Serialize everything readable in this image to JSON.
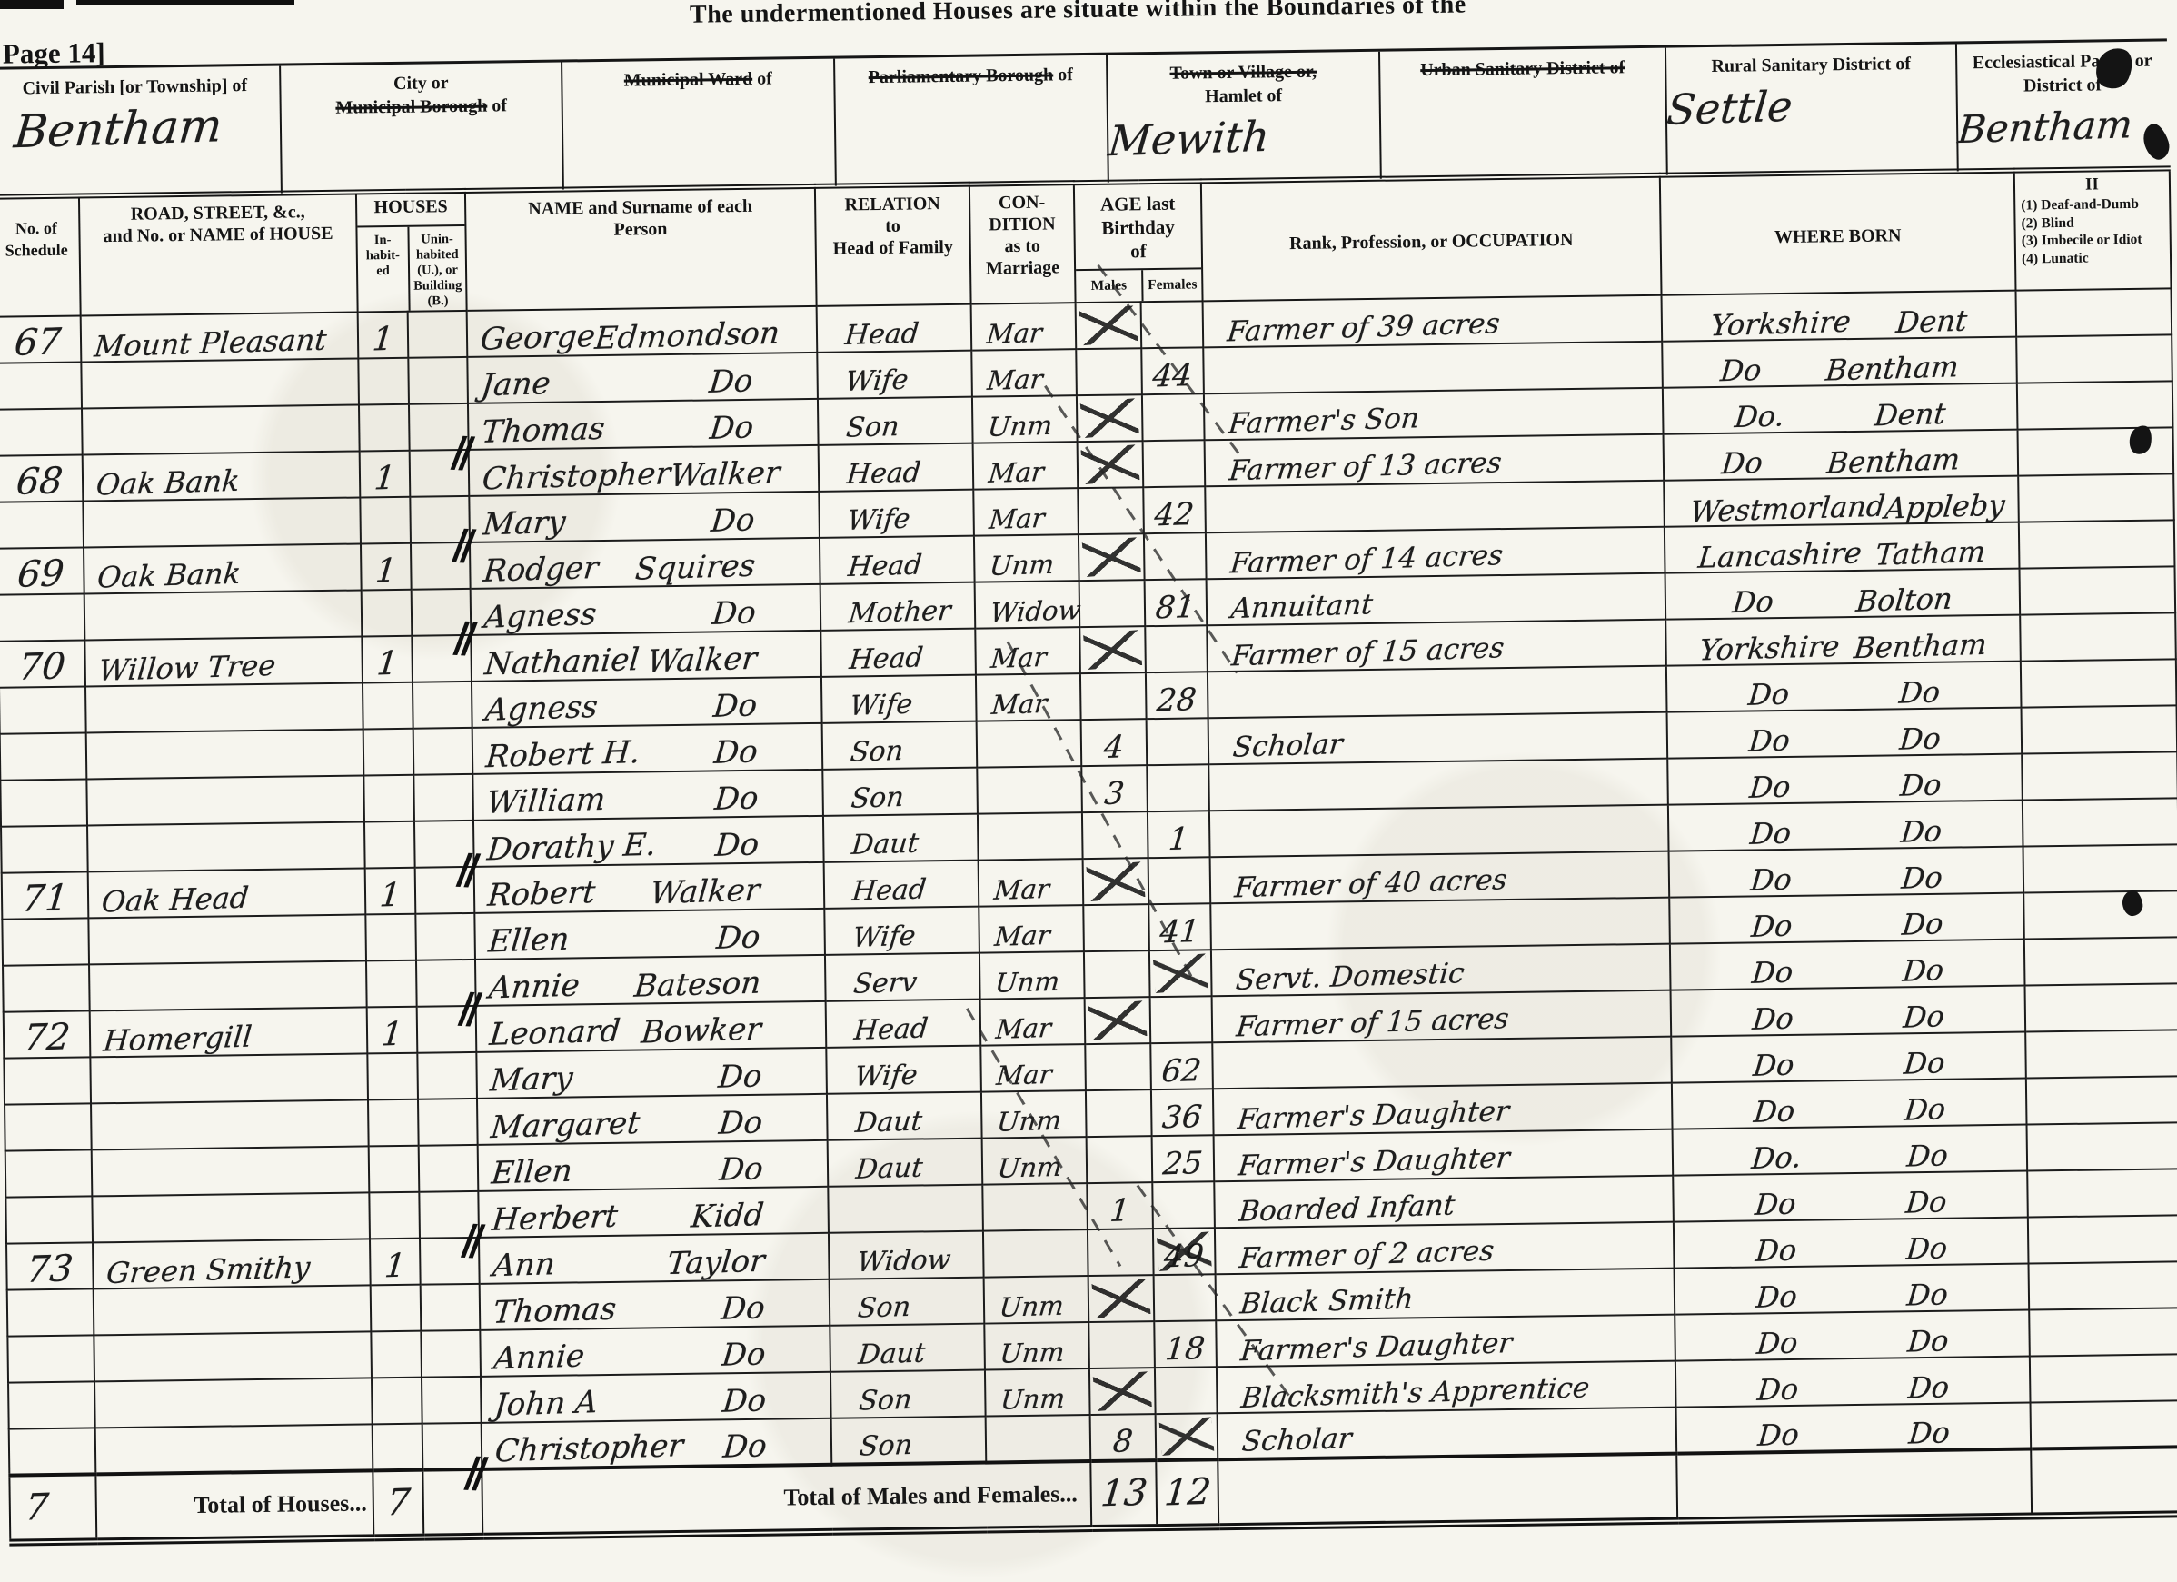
{
  "page": {
    "top_title": "The undermentioned Houses are situate within the Boundaries of the",
    "page_label": "Page 14]"
  },
  "marks": {
    "household": "∕∕"
  },
  "header_fields": [
    {
      "id": "civil-parish",
      "lines": [
        [
          {
            "t": "Civil Parish [or Township] of",
            "s": false
          }
        ]
      ],
      "value": "Bentham"
    },
    {
      "id": "municipal-borough",
      "lines": [
        [
          {
            "t": "City or",
            "s": false
          }
        ],
        [
          {
            "t": "Municipal Borough",
            "s": true
          },
          {
            "t": " of",
            "s": false
          }
        ]
      ],
      "value": ""
    },
    {
      "id": "municipal-ward",
      "lines": [
        [
          {
            "t": "Municipal Ward",
            "s": true
          },
          {
            "t": " of",
            "s": false
          }
        ]
      ],
      "value": ""
    },
    {
      "id": "parliamentary-borough",
      "lines": [
        [
          {
            "t": "Parliamentary Borough",
            "s": true
          },
          {
            "t": " of",
            "s": false
          }
        ]
      ],
      "value": ""
    },
    {
      "id": "hamlet",
      "lines": [
        [
          {
            "t": "Town or Village or,",
            "s": true
          }
        ],
        [
          {
            "t": "Hamlet of",
            "s": false
          }
        ]
      ],
      "value": "Mewith"
    },
    {
      "id": "urban-sanitary",
      "lines": [
        [
          {
            "t": "Urban Sanitary District of",
            "s": true
          }
        ]
      ],
      "value": ""
    },
    {
      "id": "rural-sanitary",
      "lines": [
        [
          {
            "t": "Rural Sanitary District of",
            "s": false
          }
        ]
      ],
      "value": "Settle"
    },
    {
      "id": "ecclesiastical-parish",
      "lines": [
        [
          {
            "t": "Ecclesiastical Parish or",
            "s": false
          }
        ],
        [
          {
            "t": "District of",
            "s": false
          }
        ]
      ],
      "value": "Bentham"
    }
  ],
  "table": {
    "headers": {
      "schedule": "No. of\nSchedule",
      "road": "ROAD, STREET, &c.,\nand No. or NAME of HOUSE",
      "houses": "HOUSES",
      "inhabited": "In-\nhabit-\ned",
      "uninhabited": "Unin-\nhabited\n(U.), or\nBuilding\n(B.)",
      "name": "NAME and Surname of each\nPerson",
      "relation": "RELATION\nto\nHead of Family",
      "condition": "CON-\nDITION\nas to\nMarriage",
      "age": "AGE last\nBirthday\nof",
      "males": "Males",
      "females": "Females",
      "occupation": "Rank, Profession, or OCCUPATION",
      "born": "WHERE BORN",
      "infirmity_title": "II",
      "infirmity_items": [
        "(1) Deaf-and-Dumb",
        "(2) Blind",
        "(3) Imbecile or Idiot",
        "(4) Lunatic"
      ]
    },
    "rows": [
      {
        "sch": "67",
        "road": "Mount Pleasant",
        "inh": "1",
        "unb": "",
        "na": "George",
        "nb": "Edmondson",
        "rel": "Head",
        "cond": "Mar",
        "m": "",
        "mx": true,
        "f": "",
        "fx": false,
        "occ": "Farmer of 39 acres",
        "ba": "Yorkshire",
        "bb": "Dent",
        "hh": false
      },
      {
        "sch": "",
        "road": "",
        "inh": "",
        "unb": "",
        "na": "Jane",
        "nb": "Do",
        "rel": "Wife",
        "cond": "Mar",
        "m": "",
        "mx": false,
        "f": "44",
        "fx": false,
        "occ": "",
        "ba": "Do",
        "bb": "Bentham",
        "hh": false
      },
      {
        "sch": "",
        "road": "",
        "inh": "",
        "unb": "",
        "na": "Thomas",
        "nb": "Do",
        "rel": "Son",
        "cond": "Unm",
        "m": "",
        "mx": true,
        "f": "",
        "fx": false,
        "occ": "Farmer's Son",
        "ba": "Do.",
        "bb": "Dent",
        "hh": false
      },
      {
        "sch": "68",
        "road": "Oak Bank",
        "inh": "1",
        "unb": "",
        "na": "Christopher",
        "nb": "Walker",
        "rel": "Head",
        "cond": "Mar",
        "m": "",
        "mx": true,
        "f": "",
        "fx": false,
        "occ": "Farmer of 13 acres",
        "ba": "Do",
        "bb": "Bentham",
        "hh": true
      },
      {
        "sch": "",
        "road": "",
        "inh": "",
        "unb": "",
        "na": "Mary",
        "nb": "Do",
        "rel": "Wife",
        "cond": "Mar",
        "m": "",
        "mx": false,
        "f": "42",
        "fx": false,
        "occ": "",
        "ba": "Westmorland",
        "bb": "Appleby",
        "hh": false
      },
      {
        "sch": "69",
        "road": "Oak Bank",
        "inh": "1",
        "unb": "",
        "na": "Rodger",
        "nb": "Squires",
        "rel": "Head",
        "cond": "Unm",
        "m": "",
        "mx": true,
        "f": "",
        "fx": false,
        "occ": "Farmer of 14 acres",
        "ba": "Lancashire",
        "bb": "Tatham",
        "hh": true
      },
      {
        "sch": "",
        "road": "",
        "inh": "",
        "unb": "",
        "na": "Agness",
        "nb": "Do",
        "rel": "Mother",
        "cond": "Widow",
        "m": "",
        "mx": false,
        "f": "81",
        "fx": false,
        "occ": "Annuitant",
        "ba": "Do",
        "bb": "Bolton",
        "hh": false
      },
      {
        "sch": "70",
        "road": "Willow Tree",
        "inh": "1",
        "unb": "",
        "na": "Nathaniel",
        "nb": "Walker",
        "rel": "Head",
        "cond": "Mar",
        "m": "",
        "mx": true,
        "f": "",
        "fx": false,
        "occ": "Farmer of 15 acres",
        "ba": "Yorkshire",
        "bb": "Bentham",
        "hh": true
      },
      {
        "sch": "",
        "road": "",
        "inh": "",
        "unb": "",
        "na": "Agness",
        "nb": "Do",
        "rel": "Wife",
        "cond": "Mar",
        "m": "",
        "mx": false,
        "f": "28",
        "fx": false,
        "occ": "",
        "ba": "Do",
        "bb": "Do",
        "hh": false
      },
      {
        "sch": "",
        "road": "",
        "inh": "",
        "unb": "",
        "na": "Robert H.",
        "nb": "Do",
        "rel": "Son",
        "cond": "",
        "m": "4",
        "mx": false,
        "f": "",
        "fx": false,
        "occ": "Scholar",
        "ba": "Do",
        "bb": "Do",
        "hh": false
      },
      {
        "sch": "",
        "road": "",
        "inh": "",
        "unb": "",
        "na": "William",
        "nb": "Do",
        "rel": "Son",
        "cond": "",
        "m": "3",
        "mx": false,
        "f": "",
        "fx": false,
        "occ": "",
        "ba": "Do",
        "bb": "Do",
        "hh": false
      },
      {
        "sch": "",
        "road": "",
        "inh": "",
        "unb": "",
        "na": "Dorathy E.",
        "nb": "Do",
        "rel": "Daut",
        "cond": "",
        "m": "",
        "mx": false,
        "f": "1",
        "fx": false,
        "occ": "",
        "ba": "Do",
        "bb": "Do",
        "hh": false
      },
      {
        "sch": "71",
        "road": "Oak Head",
        "inh": "1",
        "unb": "",
        "na": "Robert",
        "nb": "Walker",
        "rel": "Head",
        "cond": "Mar",
        "m": "",
        "mx": true,
        "f": "",
        "fx": false,
        "occ": "Farmer of 40 acres",
        "ba": "Do",
        "bb": "Do",
        "hh": true
      },
      {
        "sch": "",
        "road": "",
        "inh": "",
        "unb": "",
        "na": "Ellen",
        "nb": "Do",
        "rel": "Wife",
        "cond": "Mar",
        "m": "",
        "mx": false,
        "f": "41",
        "fx": false,
        "occ": "",
        "ba": "Do",
        "bb": "Do",
        "hh": false
      },
      {
        "sch": "",
        "road": "",
        "inh": "",
        "unb": "",
        "na": "Annie",
        "nb": "Bateson",
        "rel": "Serv",
        "cond": "Unm",
        "m": "",
        "mx": false,
        "f": "",
        "fx": true,
        "occ": "Servt. Domestic",
        "ba": "Do",
        "bb": "Do",
        "hh": false
      },
      {
        "sch": "72",
        "road": "Homergill",
        "inh": "1",
        "unb": "",
        "na": "Leonard",
        "nb": "Bowker",
        "rel": "Head",
        "cond": "Mar",
        "m": "",
        "mx": true,
        "f": "",
        "fx": false,
        "occ": "Farmer of 15 acres",
        "ba": "Do",
        "bb": "Do",
        "hh": true
      },
      {
        "sch": "",
        "road": "",
        "inh": "",
        "unb": "",
        "na": "Mary",
        "nb": "Do",
        "rel": "Wife",
        "cond": "Mar",
        "m": "",
        "mx": false,
        "f": "62",
        "fx": false,
        "occ": "",
        "ba": "Do",
        "bb": "Do",
        "hh": false
      },
      {
        "sch": "",
        "road": "",
        "inh": "",
        "unb": "",
        "na": "Margaret",
        "nb": "Do",
        "rel": "Daut",
        "cond": "Unm",
        "m": "",
        "mx": false,
        "f": "36",
        "fx": false,
        "occ": "Farmer's Daughter",
        "ba": "Do",
        "bb": "Do",
        "hh": false
      },
      {
        "sch": "",
        "road": "",
        "inh": "",
        "unb": "",
        "na": "Ellen",
        "nb": "Do",
        "rel": "Daut",
        "cond": "Unm",
        "m": "",
        "mx": false,
        "f": "25",
        "fx": false,
        "occ": "Farmer's Daughter",
        "ba": "Do.",
        "bb": "Do",
        "hh": false
      },
      {
        "sch": "",
        "road": "",
        "inh": "",
        "unb": "",
        "na": "Herbert",
        "nb": "Kidd",
        "rel": "",
        "cond": "",
        "m": "1",
        "mx": false,
        "f": "",
        "fx": false,
        "occ": "Boarded Infant",
        "ba": "Do",
        "bb": "Do",
        "hh": false
      },
      {
        "sch": "73",
        "road": "Green Smithy",
        "inh": "1",
        "unb": "",
        "na": "Ann",
        "nb": "Taylor",
        "rel": "Widow",
        "cond": "",
        "m": "",
        "mx": false,
        "f": "49",
        "fx": true,
        "occ": "Farmer of 2 acres",
        "ba": "Do",
        "bb": "Do",
        "hh": true
      },
      {
        "sch": "",
        "road": "",
        "inh": "",
        "unb": "",
        "na": "Thomas",
        "nb": "Do",
        "rel": "Son",
        "cond": "Unm",
        "m": "",
        "mx": true,
        "f": "",
        "fx": false,
        "occ": "Black Smith",
        "ba": "Do",
        "bb": "Do",
        "hh": false
      },
      {
        "sch": "",
        "road": "",
        "inh": "",
        "unb": "",
        "na": "Annie",
        "nb": "Do",
        "rel": "Daut",
        "cond": "Unm",
        "m": "",
        "mx": false,
        "f": "18",
        "fx": false,
        "occ": "Farmer's Daughter",
        "ba": "Do",
        "bb": "Do",
        "hh": false
      },
      {
        "sch": "",
        "road": "",
        "inh": "",
        "unb": "",
        "na": "John A",
        "nb": "Do",
        "rel": "Son",
        "cond": "Unm",
        "m": "",
        "mx": true,
        "f": "",
        "fx": false,
        "occ": "Blacksmith's Apprentice",
        "ba": "Do",
        "bb": "Do",
        "hh": false
      },
      {
        "sch": "",
        "road": "",
        "inh": "",
        "unb": "",
        "na": "Christopher",
        "nb": "Do",
        "rel": "Son",
        "cond": "",
        "m": "8",
        "mx": false,
        "f": "",
        "fx": true,
        "occ": "Scholar",
        "ba": "Do",
        "bb": "Do",
        "hh": false
      }
    ],
    "footer": {
      "left_mark": "7",
      "houses_label": "Total of Houses...",
      "houses_value": "7",
      "mf_label": "Total of Males and Females...",
      "males_total": "13",
      "females_total": "12"
    }
  }
}
